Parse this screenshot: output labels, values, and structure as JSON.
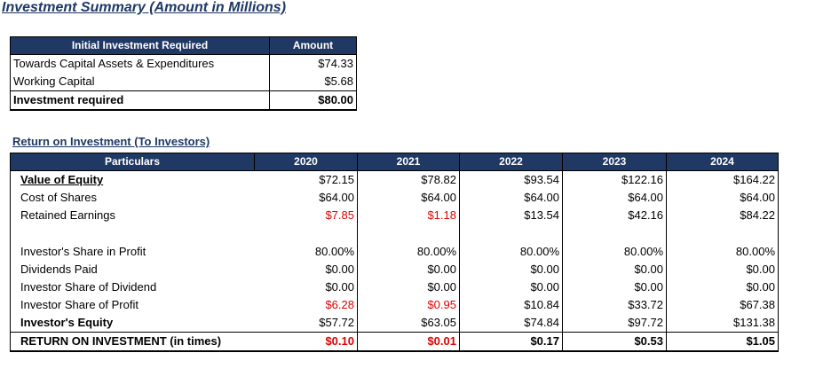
{
  "title": "Investment Summary (Amount in Millions)",
  "investment": {
    "headers": [
      "Initial Investment Required",
      "Amount"
    ],
    "rows": [
      {
        "label": "Towards Capital Assets & Expenditures",
        "value": "$74.33"
      },
      {
        "label": "Working Capital",
        "value": "$5.68"
      },
      {
        "label": "Investment required",
        "value": "$80.00"
      }
    ]
  },
  "roi": {
    "subtitle": "Return on Investment (To Investors)",
    "header_label": "Particulars",
    "years": [
      "2020",
      "2021",
      "2022",
      "2023",
      "2024"
    ],
    "rows": [
      {
        "label": "Value of Equity",
        "values": [
          "$72.15",
          "$78.82",
          "$93.54",
          "$122.16",
          "$164.22"
        ]
      },
      {
        "label": "Cost of Shares",
        "values": [
          "$64.00",
          "$64.00",
          "$64.00",
          "$64.00",
          "$64.00"
        ]
      },
      {
        "label": "Retained Earnings",
        "values": [
          "$7.85",
          "$1.18",
          "$13.54",
          "$42.16",
          "$84.22"
        ]
      },
      {
        "label": "Investor's Share in Profit",
        "values": [
          "80.00%",
          "80.00%",
          "80.00%",
          "80.00%",
          "80.00%"
        ]
      },
      {
        "label": "Dividends Paid",
        "values": [
          "$0.00",
          "$0.00",
          "$0.00",
          "$0.00",
          "$0.00"
        ]
      },
      {
        "label": "Investor Share of Dividend",
        "values": [
          "$0.00",
          "$0.00",
          "$0.00",
          "$0.00",
          "$0.00"
        ]
      },
      {
        "label": "Investor Share of Profit",
        "values": [
          "$6.28",
          "$0.95",
          "$10.84",
          "$33.72",
          "$67.38"
        ]
      },
      {
        "label": "Investor's Equity",
        "values": [
          "$57.72",
          "$63.05",
          "$74.84",
          "$97.72",
          "$131.38"
        ]
      },
      {
        "label": "RETURN ON INVESTMENT (in times)",
        "values": [
          "$0.10",
          "$0.01",
          "$0.17",
          "$0.53",
          "$1.05"
        ]
      }
    ],
    "colors": {
      "header_bg": "#1f3864",
      "negative_text": "#e00000"
    }
  }
}
